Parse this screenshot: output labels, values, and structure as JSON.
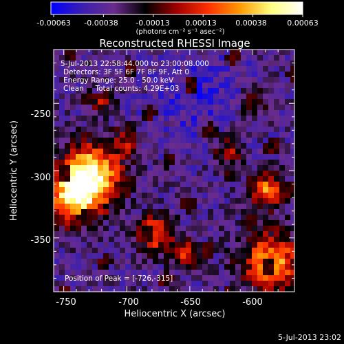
{
  "colorbar": {
    "ticks": [
      "-0.00063",
      "-0.00038",
      "-0.00013",
      "0.00013",
      "0.00038",
      "0.00063"
    ],
    "unit_label": "(photons cm⁻² s⁻¹ asec⁻²)",
    "colors": [
      "#0000ff",
      "#3b1fb0",
      "#6a2c8c",
      "#000000",
      "#a00000",
      "#ff3000",
      "#ff9a00",
      "#ffff80",
      "#ffffff"
    ]
  },
  "chart_data": {
    "type": "heatmap",
    "title": "Reconstructed RHESSI Image",
    "xlabel": "Heliocentric X (arcsec)",
    "ylabel": "Heliocentric Y (arcsec)",
    "xlim": [
      -758,
      -567
    ],
    "ylim": [
      -390,
      -210
    ],
    "x_ticks": [
      "-750",
      "-700",
      "-650",
      "-600"
    ],
    "y_ticks": [
      "-250",
      "-300",
      "-350"
    ],
    "x_tick_values": [
      -750,
      -700,
      -650,
      -600
    ],
    "y_tick_values": [
      -250,
      -300,
      -350
    ],
    "colorscale_range": [
      -0.00063,
      0.00063
    ],
    "peak_position": [
      -726,
      -315
    ],
    "annotations": [
      "5-Jul-2013 22:58:44.000 to 23:00:08.000",
      "Detectors: 3F 5F 6F 7F 8F 9F, Att 0",
      "Energy Range: 25.0 - 50.0 keV",
      "Clean     Total counts: 4.29E+03"
    ],
    "peak_label": "Position of Peak = [-726,-315]"
  },
  "timestamp": "5-Jul-2013 23:02"
}
